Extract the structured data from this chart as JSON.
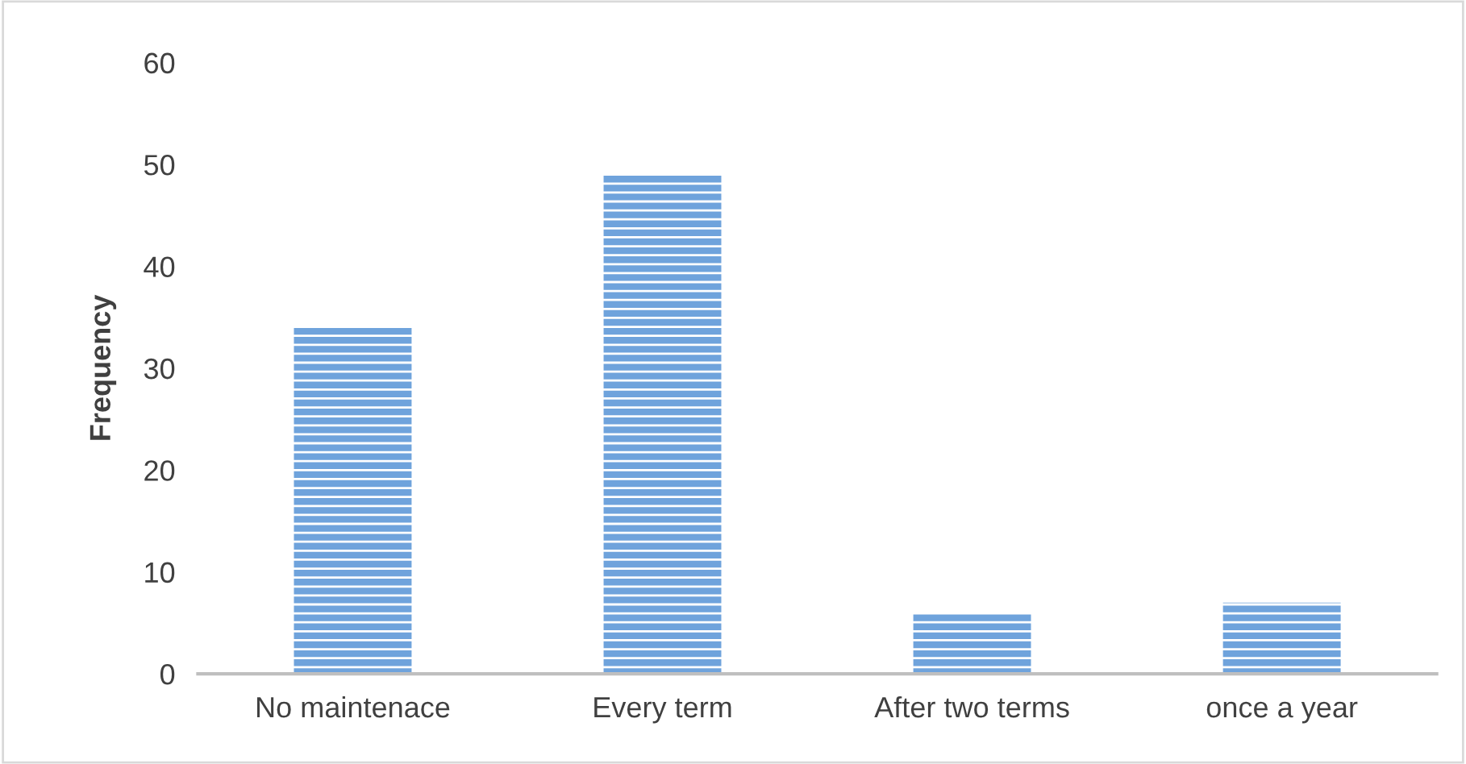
{
  "chart_data": {
    "type": "bar",
    "ylabel": "Frequency",
    "categories": [
      "No maintenace",
      "Every term",
      "After two terms",
      "once a year"
    ],
    "values": [
      34,
      49,
      6,
      7
    ],
    "color": "#6fa3dc",
    "ylim": [
      0,
      60
    ],
    "yticks": [
      0,
      10,
      20,
      30,
      40,
      50,
      60
    ],
    "grid": false
  }
}
